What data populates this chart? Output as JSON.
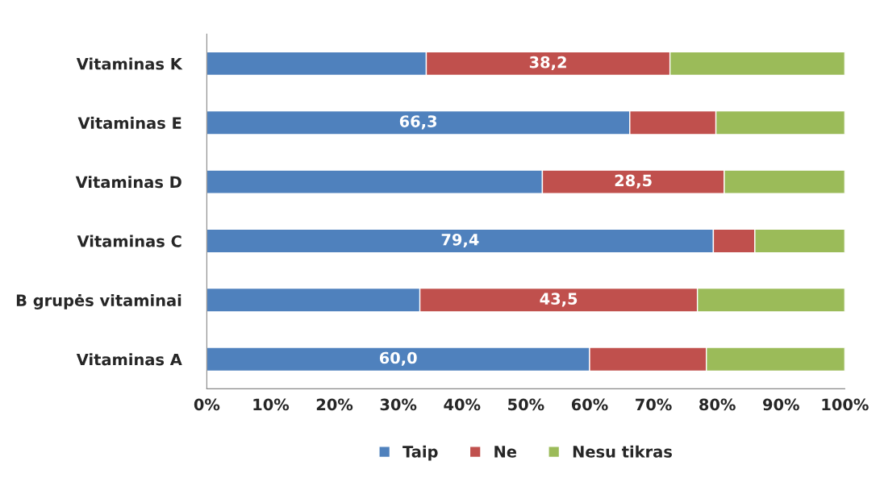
{
  "chart_data": {
    "type": "bar",
    "orientation": "horizontal",
    "stacked": true,
    "categories": [
      "Vitaminas K",
      "Vitaminas E",
      "Vitaminas D",
      "Vitaminas C",
      "B grupės vitaminai",
      "Vitaminas A"
    ],
    "series": [
      {
        "name": "Taip",
        "color": "#4f81bd",
        "values": [
          34.4,
          66.3,
          52.6,
          79.4,
          33.4,
          60.0
        ],
        "value_labels": [
          null,
          "66,3",
          null,
          "79,4",
          null,
          "60,0"
        ]
      },
      {
        "name": "Ne",
        "color": "#c0504d",
        "values": [
          38.2,
          13.5,
          28.5,
          6.5,
          43.5,
          18.3
        ],
        "value_labels": [
          "38,2",
          null,
          "28,5",
          null,
          "43,5",
          null
        ]
      },
      {
        "name": "Nesu tikras",
        "color": "#9bbb59",
        "values": [
          27.4,
          20.2,
          18.9,
          14.1,
          23.1,
          21.7
        ]
      }
    ],
    "xlim": [
      0,
      100
    ],
    "xticks": [
      {
        "value": 0,
        "label": "0%"
      },
      {
        "value": 10,
        "label": "10%"
      },
      {
        "value": 20,
        "label": "20%"
      },
      {
        "value": 30,
        "label": "30%"
      },
      {
        "value": 40,
        "label": "40%"
      },
      {
        "value": 50,
        "label": "50%"
      },
      {
        "value": 60,
        "label": "60%"
      },
      {
        "value": 70,
        "label": "70%"
      },
      {
        "value": 80,
        "label": "80%"
      },
      {
        "value": 90,
        "label": "90%"
      },
      {
        "value": 100,
        "label": "100%"
      }
    ],
    "grid": false,
    "legend": "bottom"
  }
}
